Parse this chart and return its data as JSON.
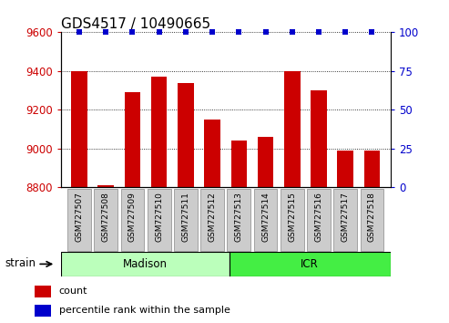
{
  "title": "GDS4517 / 10490665",
  "samples": [
    "GSM727507",
    "GSM727508",
    "GSM727509",
    "GSM727510",
    "GSM727511",
    "GSM727512",
    "GSM727513",
    "GSM727514",
    "GSM727515",
    "GSM727516",
    "GSM727517",
    "GSM727518"
  ],
  "counts": [
    9400,
    8810,
    9290,
    9370,
    9340,
    9150,
    9040,
    9060,
    9400,
    9300,
    8990,
    8990
  ],
  "percentiles": [
    100,
    100,
    100,
    100,
    100,
    100,
    100,
    100,
    100,
    100,
    100,
    100
  ],
  "ylim_left": [
    8800,
    9600
  ],
  "ylim_right": [
    0,
    100
  ],
  "yticks_left": [
    8800,
    9000,
    9200,
    9400,
    9600
  ],
  "yticks_right": [
    0,
    25,
    50,
    75,
    100
  ],
  "bar_color": "#cc0000",
  "dot_color": "#0000cc",
  "n_madison": 6,
  "n_icr": 6,
  "madison_color": "#bbffbb",
  "icr_color": "#44ee44",
  "strain_label": "strain",
  "legend_count_label": "count",
  "legend_percentile_label": "percentile rank within the sample",
  "grid_color": "#000000",
  "tick_label_color_left": "#cc0000",
  "tick_label_color_right": "#0000cc",
  "title_fontsize": 11,
  "axis_tick_fontsize": 8.5,
  "bar_width": 0.6,
  "dot_size": 5,
  "xlabel_box_color": "#cccccc",
  "xlabel_box_edge": "#888888"
}
